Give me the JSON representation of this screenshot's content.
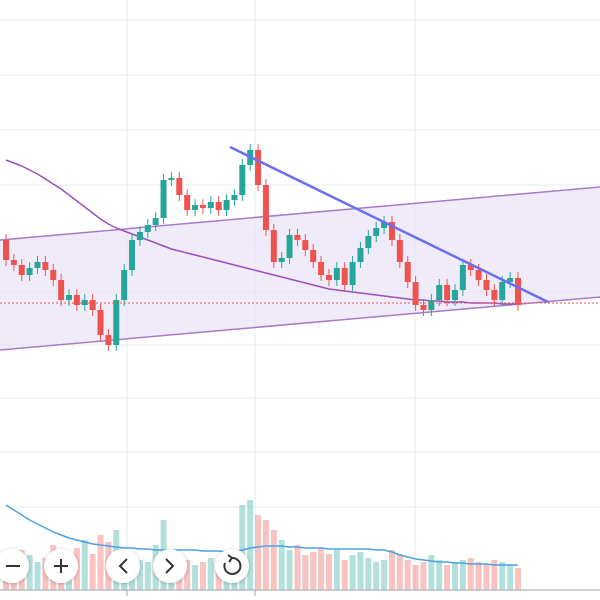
{
  "chart_data": {
    "type": "candlestick",
    "colors": {
      "up": "#26a69a",
      "down": "#ef5350",
      "ma": "#9c4fc0",
      "volume_ma": "#4aa3df"
    },
    "ylim": [
      0,
      600
    ],
    "open": [
      360,
      340,
      335,
      325,
      332,
      338,
      330,
      320,
      300,
      305,
      295,
      300,
      290,
      265,
      255,
      300,
      330,
      360,
      368,
      375,
      382,
      420,
      422,
      405,
      390,
      395,
      392,
      398,
      390,
      400,
      405,
      435,
      450,
      415,
      370,
      338,
      342,
      365,
      360,
      350,
      338,
      325,
      320,
      332,
      315,
      338,
      352,
      364,
      372,
      378,
      360,
      338,
      318,
      295,
      290,
      300,
      315,
      300,
      310,
      335,
      330,
      320,
      310,
      300,
      318,
      322
    ],
    "high": [
      366,
      346,
      341,
      338,
      344,
      344,
      336,
      326,
      311,
      311,
      306,
      306,
      296,
      271,
      306,
      336,
      366,
      374,
      381,
      388,
      426,
      428,
      428,
      411,
      401,
      401,
      404,
      404,
      406,
      411,
      441,
      456,
      456,
      421,
      376,
      348,
      371,
      371,
      366,
      356,
      344,
      331,
      338,
      338,
      344,
      358,
      370,
      378,
      384,
      384,
      366,
      344,
      324,
      301,
      306,
      321,
      321,
      316,
      341,
      341,
      336,
      326,
      316,
      324,
      328,
      328
    ],
    "low": [
      334,
      329,
      319,
      319,
      326,
      324,
      314,
      294,
      294,
      289,
      289,
      284,
      259,
      249,
      249,
      294,
      324,
      354,
      362,
      369,
      376,
      414,
      399,
      384,
      384,
      386,
      386,
      384,
      384,
      394,
      399,
      429,
      409,
      364,
      332,
      332,
      336,
      354,
      344,
      332,
      319,
      314,
      314,
      309,
      309,
      332,
      346,
      358,
      366,
      354,
      332,
      312,
      289,
      284,
      284,
      294,
      294,
      294,
      304,
      324,
      314,
      304,
      294,
      294,
      312,
      289
    ],
    "close": [
      340,
      335,
      325,
      332,
      338,
      330,
      320,
      300,
      305,
      295,
      300,
      290,
      265,
      255,
      300,
      330,
      360,
      368,
      375,
      382,
      420,
      422,
      405,
      390,
      395,
      392,
      398,
      390,
      400,
      405,
      435,
      450,
      415,
      370,
      338,
      342,
      365,
      360,
      350,
      338,
      325,
      320,
      332,
      315,
      338,
      352,
      364,
      372,
      378,
      360,
      338,
      318,
      295,
      290,
      300,
      315,
      300,
      310,
      335,
      330,
      320,
      310,
      300,
      318,
      322,
      295
    ],
    "ma": [
      440,
      437,
      434,
      430,
      426,
      421,
      416,
      411,
      405,
      399,
      393,
      387,
      381,
      376,
      372,
      369,
      366,
      363,
      360,
      357,
      354,
      351,
      349,
      347,
      345,
      343,
      341,
      339,
      337,
      335,
      333,
      331,
      329,
      327,
      325,
      323,
      321,
      319,
      317,
      315,
      313,
      311,
      310,
      309,
      308,
      307,
      306,
      305,
      304,
      303,
      302,
      301,
      300,
      300,
      299,
      299,
      298,
      298,
      298,
      297,
      297,
      297,
      297,
      296,
      296,
      296
    ],
    "volume": [
      30,
      25,
      40,
      35,
      28,
      32,
      45,
      38,
      30,
      42,
      50,
      36,
      55,
      48,
      60,
      40,
      35,
      30,
      28,
      45,
      70,
      40,
      35,
      30,
      25,
      28,
      32,
      30,
      35,
      40,
      85,
      90,
      75,
      70,
      60,
      50,
      40,
      45,
      35,
      38,
      42,
      36,
      40,
      30,
      35,
      38,
      32,
      28,
      30,
      40,
      36,
      30,
      25,
      28,
      35,
      30,
      25,
      28,
      30,
      32,
      28,
      26,
      30,
      28,
      25,
      22
    ],
    "volume_ma": [
      85,
      80,
      75,
      70,
      66,
      62,
      58,
      55,
      52,
      50,
      48,
      46,
      45,
      44,
      43,
      42,
      42,
      41,
      41,
      40,
      40,
      40,
      40,
      40,
      40,
      39,
      39,
      39,
      38,
      38,
      40,
      42,
      43,
      44,
      44,
      44,
      43,
      43,
      42,
      42,
      42,
      41,
      41,
      41,
      41,
      41,
      41,
      40,
      40,
      38,
      35,
      33,
      31,
      30,
      29,
      28,
      28,
      27,
      27,
      26,
      26,
      26,
      25,
      25,
      25,
      25
    ]
  }
}
